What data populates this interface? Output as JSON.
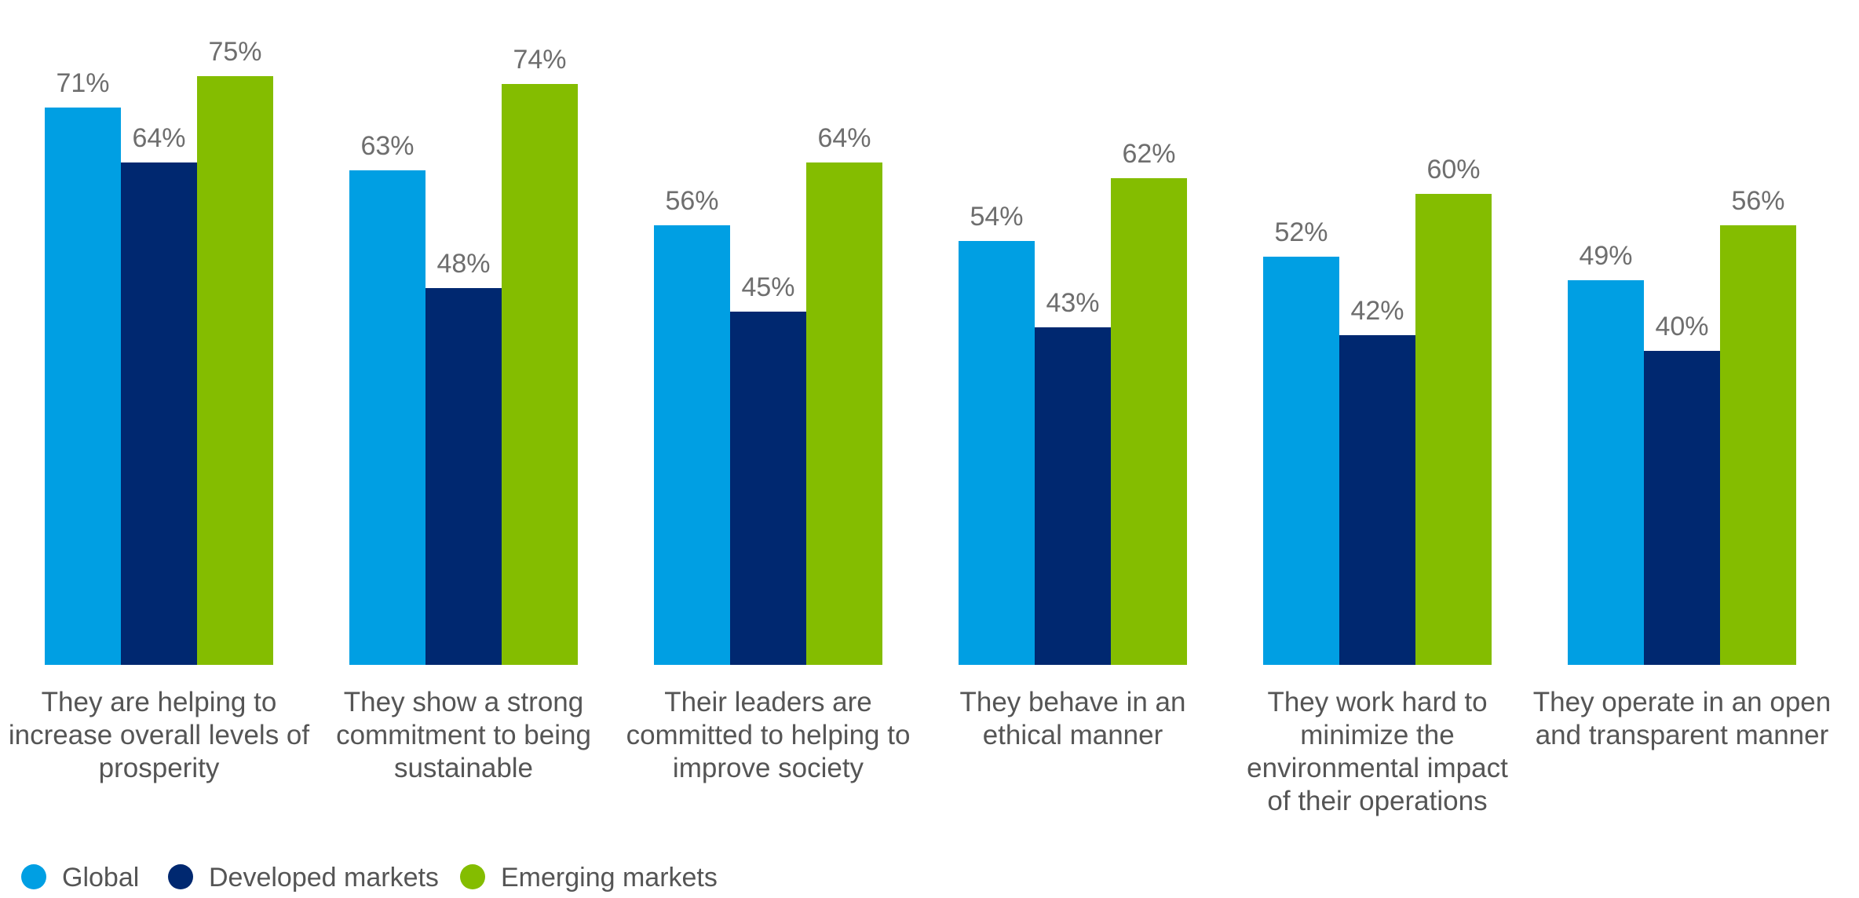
{
  "chart_data": {
    "type": "bar",
    "title": "",
    "xlabel": "",
    "ylabel": "",
    "ylim": [
      0,
      80
    ],
    "grid": false,
    "legend_position": "bottom-left",
    "value_suffix": "%",
    "categories": [
      [
        "They are helping to",
        "increase overall levels of",
        "prosperity"
      ],
      [
        "They show a strong",
        "commitment to being",
        "sustainable"
      ],
      [
        "Their leaders are",
        "committed to helping to",
        "improve society"
      ],
      [
        "They behave in an",
        "ethical manner"
      ],
      [
        "They work hard to",
        "minimize the",
        "environmental impact",
        "of their operations"
      ],
      [
        "They operate in an open",
        "and transparent manner"
      ]
    ],
    "series": [
      {
        "name": "Global",
        "color": "#009fe3",
        "values": [
          71,
          63,
          56,
          54,
          52,
          49
        ]
      },
      {
        "name": "Developed markets",
        "color": "#002870",
        "values": [
          64,
          48,
          45,
          43,
          42,
          40
        ]
      },
      {
        "name": "Emerging markets",
        "color": "#84bd00",
        "values": [
          75,
          74,
          64,
          62,
          60,
          56
        ]
      }
    ]
  }
}
